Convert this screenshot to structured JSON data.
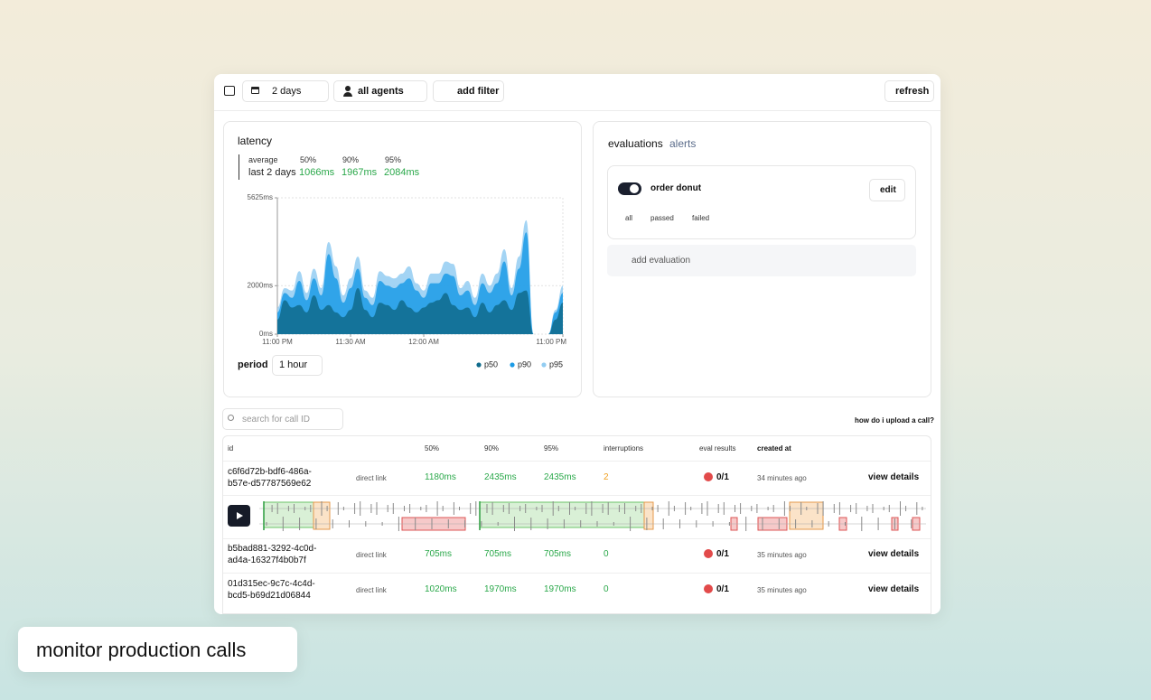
{
  "toolbar": {
    "range": "2 days",
    "agents": "all agents",
    "add_filter": "add filter",
    "refresh": "refresh"
  },
  "latency": {
    "title": "latency",
    "stats_headers": [
      "average",
      "50%",
      "90%",
      "95%"
    ],
    "stats_row": [
      "last 2 days",
      "1066ms",
      "1967ms",
      "2084ms"
    ],
    "period_label": "period",
    "period": "1 hour"
  },
  "chart_data": {
    "type": "area",
    "categories": [
      "11:00 PM",
      null,
      null,
      null,
      null,
      null,
      null,
      null,
      null,
      null,
      "11:30 AM",
      null,
      null,
      null,
      null,
      null,
      null,
      null,
      null,
      null,
      "12:00 AM",
      null,
      null,
      null,
      null,
      null,
      null,
      null,
      null,
      null,
      null,
      null,
      null,
      null,
      null,
      null,
      null,
      null,
      null,
      "11:00 PM"
    ],
    "series": [
      {
        "name": "p50",
        "color": "#0f6b8c",
        "values": [
          600,
          1400,
          1100,
          1200,
          900,
          1600,
          1000,
          1200,
          900,
          700,
          1000,
          1900,
          1000,
          700,
          1300,
          1200,
          1000,
          1400,
          1100,
          900,
          1100,
          1300,
          1400,
          1700,
          1200,
          1000,
          1100,
          700,
          1300,
          900,
          1200,
          1400,
          1000,
          1700,
          1800,
          0,
          0,
          0,
          600,
          1300
        ]
      },
      {
        "name": "p90",
        "color": "#1c9be6",
        "values": [
          900,
          1700,
          1500,
          2200,
          1400,
          2300,
          1600,
          3300,
          2300,
          1300,
          1900,
          2700,
          1500,
          1200,
          2200,
          2000,
          1900,
          2100,
          2300,
          1800,
          1500,
          2100,
          2100,
          2500,
          2400,
          1600,
          1800,
          1200,
          2100,
          1700,
          2100,
          3000,
          1600,
          2700,
          4200,
          0,
          0,
          0,
          900,
          1700
        ]
      },
      {
        "name": "p95",
        "color": "#93cdf2",
        "values": [
          1100,
          1900,
          1800,
          2600,
          1700,
          2700,
          1900,
          3800,
          2800,
          1600,
          2300,
          3200,
          1800,
          1500,
          2600,
          2400,
          2300,
          2500,
          2800,
          2100,
          1800,
          2500,
          2500,
          3000,
          2900,
          1900,
          2200,
          1500,
          2500,
          2000,
          2500,
          3500,
          1900,
          3200,
          4700,
          0,
          0,
          0,
          1000,
          2000
        ]
      }
    ],
    "ylim": [
      0,
      5625
    ],
    "yticks": [
      {
        "value": 0,
        "label": "0ms"
      },
      {
        "value": 2000,
        "label": "2000ms"
      },
      {
        "value": 5625,
        "label": "5625ms"
      }
    ],
    "grid": true,
    "legend": "bottom-right"
  },
  "evaluations": {
    "tabs": [
      "evaluations",
      "alerts"
    ],
    "name": "order donut",
    "edit": "edit",
    "filters": [
      "all",
      "passed",
      "failed"
    ],
    "add": "add evaluation"
  },
  "search": {
    "placeholder": "search for call ID",
    "help": "how do i upload a call?"
  },
  "table": {
    "headers": [
      "id",
      "50%",
      "90%",
      "95%",
      "interruptions",
      "eval results",
      "created at"
    ],
    "link_label": "direct link",
    "details_label": "view details",
    "rows": [
      [
        "c6f6d72b-bdf6-486a-b57e-d57787569e62",
        "1180ms",
        "2435ms",
        "2435ms",
        "2",
        "0/1",
        "34 minutes ago"
      ],
      [
        "b5bad881-3292-4c0d-ad4a-16327f4b0b7f",
        "705ms",
        "705ms",
        "705ms",
        "0",
        "0/1",
        "35 minutes ago"
      ],
      [
        "01d315ec-9c7c-4c4d-bcd5-b69d21d06844",
        "1020ms",
        "1970ms",
        "1970ms",
        "0",
        "0/1",
        "35 minutes ago"
      ]
    ]
  },
  "banner": "monitor production calls"
}
